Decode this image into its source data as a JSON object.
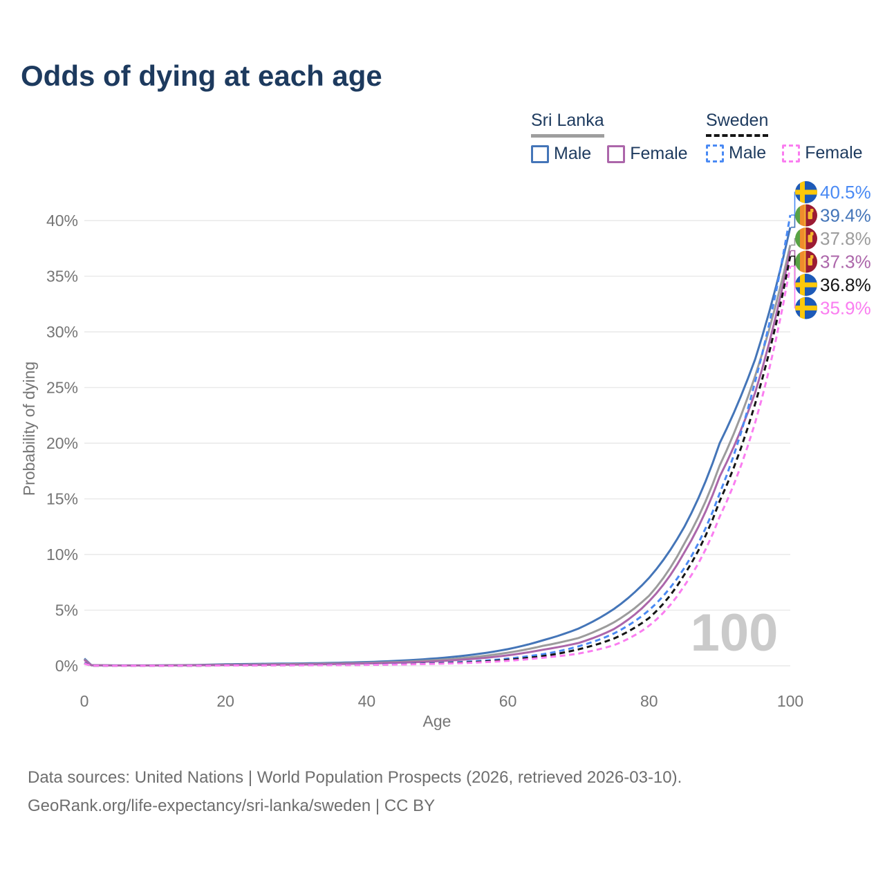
{
  "title": "Odds of dying at each age",
  "legend": {
    "groups": [
      {
        "label": "Sri Lanka",
        "line_style": "solid",
        "underline_color": "#9e9e9e",
        "items": [
          {
            "label": "Male",
            "color": "#4475b8",
            "dashed": false
          },
          {
            "label": "Female",
            "color": "#ac66aa",
            "dashed": false
          }
        ]
      },
      {
        "label": "Sweden",
        "line_style": "dashed",
        "underline_color": "#161616",
        "items": [
          {
            "label": "Male",
            "color": "#4a8af4",
            "dashed": true
          },
          {
            "label": "Female",
            "color": "#fa7df0",
            "dashed": true
          }
        ]
      }
    ]
  },
  "chart_data": {
    "type": "line",
    "title": "Odds of dying at each age",
    "xlabel": "Age",
    "ylabel": "Probability of dying",
    "x_ticks": [
      0,
      20,
      40,
      60,
      80,
      100
    ],
    "y_ticks_percent": [
      0,
      5,
      10,
      15,
      20,
      25,
      30,
      35,
      40
    ],
    "xlim": [
      0,
      100
    ],
    "ylim_percent": [
      0,
      42
    ],
    "grid": "horizontal-only",
    "legend_position": "top-right",
    "hover_age_watermark": "100",
    "ages": [
      0,
      1,
      5,
      10,
      15,
      20,
      25,
      30,
      35,
      40,
      45,
      50,
      55,
      60,
      65,
      70,
      75,
      80,
      85,
      90,
      95,
      100
    ],
    "series": [
      {
        "name": "Sri Lanka Male",
        "country": "Sri Lanka",
        "sex": "Male",
        "color": "#4475b8",
        "dashed": false,
        "flag_icon": "sri-lanka-flag-icon",
        "end_label": "39.4%",
        "end_value": 39.4,
        "values": [
          0.65,
          0.06,
          0.035,
          0.04,
          0.07,
          0.14,
          0.18,
          0.21,
          0.26,
          0.34,
          0.47,
          0.68,
          1.0,
          1.5,
          2.3,
          3.35,
          5.1,
          7.9,
          12.5,
          20.0,
          27.5,
          39.4
        ]
      },
      {
        "name": "Sri Lanka",
        "country": "Sri Lanka",
        "color": "#9c9c9c",
        "dashed": false,
        "flag_icon": "sri-lanka-flag-icon",
        "end_label": "37.8%",
        "end_value": 37.8,
        "values": [
          0.58,
          0.055,
          0.03,
          0.035,
          0.055,
          0.1,
          0.13,
          0.16,
          0.2,
          0.26,
          0.36,
          0.52,
          0.78,
          1.18,
          1.8,
          2.5,
          3.9,
          6.3,
          11.0,
          18.0,
          26.0,
          37.8
        ]
      },
      {
        "name": "Sri Lanka Female",
        "country": "Sri Lanka",
        "sex": "Female",
        "color": "#ac66aa",
        "dashed": false,
        "flag_icon": "sri-lanka-flag-icon",
        "end_label": "37.3%",
        "end_value": 37.3,
        "values": [
          0.52,
          0.05,
          0.028,
          0.03,
          0.045,
          0.07,
          0.09,
          0.12,
          0.155,
          0.21,
          0.29,
          0.42,
          0.62,
          0.95,
          1.45,
          2.05,
          3.3,
          5.8,
          10.2,
          17.0,
          24.5,
          37.3
        ]
      },
      {
        "name": "Sweden Male",
        "country": "Sweden",
        "sex": "Male",
        "color": "#4a8af4",
        "dashed": true,
        "flag_icon": "sweden-flag-icon",
        "end_label": "40.5%",
        "end_value": 40.5,
        "values": [
          0.25,
          0.02,
          0.008,
          0.009,
          0.018,
          0.045,
          0.06,
          0.07,
          0.085,
          0.11,
          0.16,
          0.25,
          0.4,
          0.65,
          1.05,
          1.75,
          2.9,
          5.0,
          8.8,
          15.5,
          25.5,
          40.5
        ]
      },
      {
        "name": "Sweden",
        "country": "Sweden",
        "color": "#151515",
        "dashed": true,
        "flag_icon": "sweden-flag-icon",
        "end_label": "36.8%",
        "end_value": 36.8,
        "values": [
          0.22,
          0.018,
          0.007,
          0.008,
          0.015,
          0.035,
          0.05,
          0.06,
          0.07,
          0.095,
          0.14,
          0.21,
          0.33,
          0.54,
          0.88,
          1.48,
          2.45,
          4.3,
          8.2,
          14.8,
          23.5,
          36.8
        ]
      },
      {
        "name": "Sweden Female",
        "country": "Sweden",
        "sex": "Female",
        "color": "#fa7df0",
        "dashed": true,
        "flag_icon": "sweden-flag-icon",
        "end_label": "35.9%",
        "end_value": 35.9,
        "values": [
          0.2,
          0.016,
          0.006,
          0.007,
          0.012,
          0.028,
          0.04,
          0.05,
          0.06,
          0.085,
          0.125,
          0.185,
          0.28,
          0.45,
          0.73,
          1.1,
          1.85,
          3.6,
          7.2,
          13.4,
          21.8,
          35.9
        ]
      }
    ]
  },
  "footer": {
    "line1": "Data sources: United Nations | World Population Prospects (2026, retrieved 2026-03-10).",
    "line2": "GeoRank.org/life-expectancy/sri-lanka/sweden | CC BY"
  }
}
